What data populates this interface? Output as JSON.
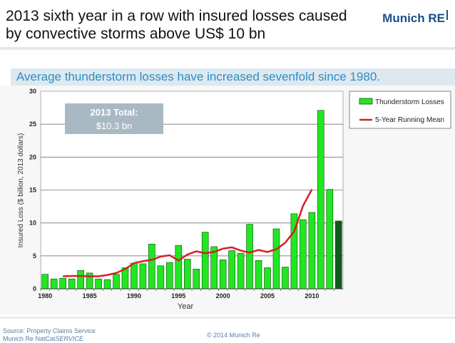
{
  "slide": {
    "title": "2013 sixth year in a row with insured losses caused by convective storms above US$ 10 bn",
    "logo": "Munich RE",
    "subtitle": "Average thunderstorm losses have increased sevenfold since 1980.",
    "source_line1": "Source: Property Claims Service",
    "source_line2_prefix": "Munich Re NatCat",
    "source_line2_italic": "SERVICE",
    "copyright": "© 2014 Munich Re"
  },
  "chart_data": {
    "type": "bar",
    "xlabel": "Year",
    "ylabel": "Insured Loss ($ billion, 2013 dollars)",
    "ylim": [
      0,
      30
    ],
    "yticks": [
      "0",
      "5",
      "10",
      "15",
      "20",
      "25",
      "30"
    ],
    "xticks": [
      "1980",
      "1985",
      "1990",
      "1995",
      "2000",
      "2005",
      "2010"
    ],
    "annotation_line1": "2013 Total:",
    "annotation_line2": "$10.3 bn",
    "legend": [
      "Thunderstorm Losses",
      "5-Year Running Mean"
    ],
    "legend_position": "top-right-outside",
    "colors": {
      "bar": "#22e622",
      "bar_highlight": "#0d5c1a",
      "line": "#d42020"
    },
    "x": [
      1980,
      1981,
      1982,
      1983,
      1984,
      1985,
      1986,
      1987,
      1988,
      1989,
      1990,
      1991,
      1992,
      1993,
      1994,
      1995,
      1996,
      1997,
      1998,
      1999,
      2000,
      2001,
      2002,
      2003,
      2004,
      2005,
      2006,
      2007,
      2008,
      2009,
      2010,
      2011,
      2012,
      2013
    ],
    "series": [
      {
        "name": "Thunderstorm Losses",
        "type": "bar",
        "values": [
          2.2,
          1.5,
          1.6,
          1.5,
          2.8,
          2.4,
          1.5,
          1.4,
          2.2,
          3.2,
          3.9,
          3.8,
          6.8,
          3.5,
          4.0,
          6.6,
          4.5,
          3.0,
          8.6,
          6.4,
          4.4,
          5.8,
          5.4,
          9.8,
          4.3,
          3.2,
          9.1,
          3.3,
          11.4,
          10.5,
          11.6,
          27.1,
          15.1,
          10.3
        ]
      },
      {
        "name": "5-Year Running Mean",
        "type": "line",
        "x": [
          1982,
          1983,
          1984,
          1985,
          1986,
          1987,
          1988,
          1989,
          1990,
          1991,
          1992,
          1993,
          1994,
          1995,
          1996,
          1997,
          1998,
          1999,
          2000,
          2001,
          2002,
          2003,
          2004,
          2005,
          2006,
          2007,
          2008,
          2009,
          2010
        ],
        "values": [
          1.9,
          1.95,
          1.95,
          1.9,
          1.9,
          2.1,
          2.4,
          3.0,
          3.9,
          4.2,
          4.4,
          4.9,
          5.1,
          4.3,
          5.2,
          5.7,
          5.4,
          5.6,
          6.1,
          6.3,
          5.8,
          5.5,
          5.9,
          5.6,
          6.0,
          7.0,
          8.7,
          12.6,
          15.1
        ]
      }
    ]
  }
}
